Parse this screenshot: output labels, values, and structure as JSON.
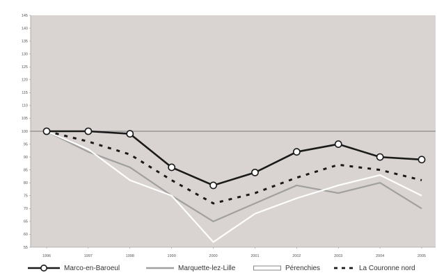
{
  "chart_data": {
    "type": "line",
    "title": "",
    "xlabel": "",
    "ylabel": "",
    "categories": [
      "1996",
      "1997",
      "1998",
      "1999",
      "2000",
      "2001",
      "2002",
      "2003",
      "2004",
      "2005"
    ],
    "ylim": [
      55,
      145
    ],
    "yticks": [
      55,
      60,
      65,
      70,
      75,
      80,
      85,
      90,
      95,
      100,
      105,
      110,
      115,
      120,
      125,
      130,
      135,
      140,
      145
    ],
    "reference_line": 100,
    "grid": false,
    "legend_position": "bottom",
    "series": [
      {
        "name": "Marco-en-Baroeul",
        "values": [
          100,
          100,
          99,
          86,
          79,
          84,
          92,
          95,
          90,
          89
        ],
        "color": "#1a1a1a",
        "style": "solid-markers"
      },
      {
        "name": "Marquette-lez-Lille",
        "values": [
          100,
          92,
          86,
          75,
          65,
          72,
          79,
          76,
          80,
          70
        ],
        "color": "#a0a0a0",
        "style": "solid"
      },
      {
        "name": "Pérenchies",
        "values": [
          100,
          93,
          81,
          75,
          57,
          68,
          74,
          79,
          83,
          75
        ],
        "color": "#ffffff",
        "style": "solid"
      },
      {
        "name": "La Couronne nord",
        "values": [
          100,
          96,
          91,
          81,
          72,
          76,
          82,
          87,
          85,
          81
        ],
        "color": "#1a1a1a",
        "style": "dashed"
      }
    ]
  },
  "colors": {
    "plot_background": "#d9d4d1",
    "reference_line": "#8c8c8c"
  }
}
